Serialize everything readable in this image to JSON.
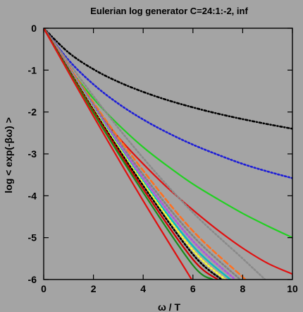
{
  "chart_data": {
    "type": "line",
    "title": "Eulerian log generator C=24:1:-2, inf",
    "xlabel": "ω / T",
    "ylabel": "log < exp(-βω) >",
    "xlim": [
      0,
      10
    ],
    "ylim": [
      -6,
      0
    ],
    "xticks": [
      "0",
      "2",
      "4",
      "6",
      "8",
      "10"
    ],
    "yticks": [
      "0",
      "-1",
      "-2",
      "-3",
      "-4",
      "-5",
      "-6"
    ],
    "grid": false,
    "legend": "none",
    "series": [
      {
        "color": "#000000",
        "style": "dashdot",
        "x": [
          0,
          1,
          2,
          3,
          4,
          5,
          6,
          7,
          8,
          9,
          10
        ],
        "y": [
          0,
          -0.58,
          -0.98,
          -1.28,
          -1.52,
          -1.72,
          -1.89,
          -2.04,
          -2.17,
          -2.29,
          -2.4
        ]
      },
      {
        "color": "#1d1dd6",
        "style": "dotted",
        "x": [
          0,
          1,
          2,
          3,
          4,
          5,
          6,
          7,
          8,
          9,
          10
        ],
        "y": [
          0,
          -0.76,
          -1.34,
          -1.8,
          -2.18,
          -2.5,
          -2.78,
          -3.02,
          -3.24,
          -3.42,
          -3.58
        ]
      },
      {
        "color": "#22d022",
        "style": "solid",
        "x": [
          0,
          1,
          2,
          3,
          4,
          5,
          6,
          7,
          8,
          9,
          10
        ],
        "y": [
          0,
          -0.92,
          -1.68,
          -2.3,
          -2.84,
          -3.3,
          -3.72,
          -4.08,
          -4.42,
          -4.72,
          -5.0
        ]
      },
      {
        "color": "#e01010",
        "style": "solid",
        "x": [
          0,
          1,
          2,
          3,
          4,
          5,
          6,
          7,
          8,
          9,
          10
        ],
        "y": [
          0,
          -0.98,
          -1.86,
          -2.6,
          -3.24,
          -3.82,
          -4.34,
          -4.82,
          -5.25,
          -5.61,
          -5.87
        ]
      },
      {
        "color": "#8a8a8a",
        "style": "dotted",
        "x": [
          0,
          2,
          4,
          6,
          8,
          8.9
        ],
        "y": [
          0,
          -1.62,
          -3.1,
          -4.4,
          -5.5,
          -6
        ]
      },
      {
        "color": "#ff7020",
        "style": "dashed",
        "x": [
          0,
          2,
          4,
          6,
          8,
          8.1
        ],
        "y": [
          0,
          -1.78,
          -3.4,
          -4.84,
          -5.94,
          -6
        ]
      },
      {
        "color": "#808080",
        "style": "dotted",
        "x": [
          0,
          2,
          4,
          6,
          7.9
        ],
        "y": [
          0,
          -1.82,
          -3.5,
          -4.96,
          -6
        ]
      },
      {
        "color": "#b050e0",
        "style": "dotted",
        "x": [
          0,
          2,
          4,
          6,
          7.7
        ],
        "y": [
          0,
          -1.86,
          -3.58,
          -5.08,
          -6
        ]
      },
      {
        "color": "#00c0c0",
        "style": "solid",
        "x": [
          0,
          2,
          4,
          6,
          7.5
        ],
        "y": [
          0,
          -1.9,
          -3.66,
          -5.2,
          -6
        ]
      },
      {
        "color": "#ffff30",
        "style": "dotted",
        "x": [
          0,
          2,
          4,
          6,
          7.3
        ],
        "y": [
          0,
          -1.92,
          -3.7,
          -5.3,
          -6
        ]
      },
      {
        "color": "#000000",
        "style": "dotted",
        "x": [
          0,
          2,
          4,
          6,
          7.15
        ],
        "y": [
          0,
          -1.95,
          -3.76,
          -5.4,
          -6
        ]
      },
      {
        "color": "#d00000",
        "style": "solid",
        "x": [
          0,
          2,
          4,
          6,
          7.0
        ],
        "y": [
          0,
          -1.98,
          -3.84,
          -5.52,
          -6
        ]
      },
      {
        "color": "#1a8a1a",
        "style": "solid",
        "x": [
          0,
          2,
          4,
          6,
          6.8
        ],
        "y": [
          0,
          -2.02,
          -3.92,
          -5.66,
          -6
        ]
      },
      {
        "color": "#e01010",
        "style": "solid",
        "x": [
          0,
          2,
          4,
          5.95
        ],
        "y": [
          0,
          -2.1,
          -4.12,
          -6
        ]
      }
    ]
  }
}
